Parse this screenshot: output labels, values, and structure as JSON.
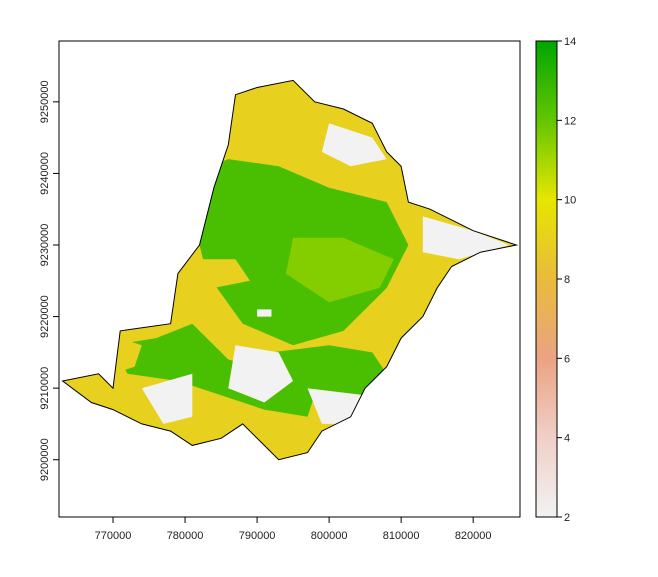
{
  "map": {
    "x_ticks": [
      "770000",
      "780000",
      "790000",
      "800000",
      "810000",
      "820000"
    ],
    "x_tick_values": [
      770000,
      780000,
      790000,
      800000,
      810000,
      820000
    ],
    "y_ticks": [
      "9200000",
      "9210000",
      "9220000",
      "9230000",
      "9240000",
      "9250000"
    ],
    "y_tick_values": [
      9200000,
      9210000,
      9220000,
      9230000,
      9240000,
      9250000
    ],
    "x_range": [
      762500,
      826500
    ],
    "y_range": [
      9192000,
      9258500
    ],
    "legend": {
      "ticks": [
        "2",
        "4",
        "6",
        "8",
        "10",
        "12",
        "14"
      ],
      "tick_values": [
        2,
        4,
        6,
        8,
        10,
        12,
        14
      ],
      "range": [
        2,
        14
      ],
      "colors": [
        "#f2f2f2",
        "#f0cfc8",
        "#eba382",
        "#e9bb3b",
        "#e6e600",
        "#63c600",
        "#00a600"
      ]
    },
    "boundary": [
      [
        763,
        9211
      ],
      [
        768,
        9212
      ],
      [
        770,
        9210
      ],
      [
        771,
        9218
      ],
      [
        778,
        9219
      ],
      [
        779,
        9226
      ],
      [
        782,
        9230
      ],
      [
        784,
        9238
      ],
      [
        786,
        9244
      ],
      [
        787,
        9251
      ],
      [
        790,
        9252
      ],
      [
        795,
        9253
      ],
      [
        798,
        9250
      ],
      [
        802,
        9249
      ],
      [
        806,
        9247
      ],
      [
        808,
        9243
      ],
      [
        810,
        9241
      ],
      [
        811,
        9236
      ],
      [
        814,
        9235
      ],
      [
        820,
        9232
      ],
      [
        826,
        9230
      ],
      [
        821,
        9229
      ],
      [
        817,
        9227
      ],
      [
        815,
        9224
      ],
      [
        813,
        9220
      ],
      [
        810,
        9217
      ],
      [
        808,
        9213
      ],
      [
        805,
        9210
      ],
      [
        803,
        9206
      ],
      [
        799,
        9204
      ],
      [
        797,
        9201
      ],
      [
        793,
        9200
      ],
      [
        791,
        9202
      ],
      [
        788,
        9205
      ],
      [
        785,
        9203
      ],
      [
        781,
        9202
      ],
      [
        778,
        9204
      ],
      [
        774,
        9205
      ],
      [
        770,
        9207
      ],
      [
        767,
        9208
      ],
      [
        763,
        9211
      ]
    ],
    "regions": [
      {
        "value": 12.5,
        "points": [
          [
            781,
            9240
          ],
          [
            786,
            9242
          ],
          [
            793,
            9241
          ],
          [
            800,
            9238
          ],
          [
            808,
            9236
          ],
          [
            811,
            9230
          ],
          [
            808,
            9224
          ],
          [
            802,
            9218
          ],
          [
            795,
            9216
          ],
          [
            788,
            9219
          ],
          [
            783,
            9226
          ],
          [
            781,
            9234
          ]
        ]
      },
      {
        "value": 11.5,
        "points": [
          [
            795,
            9231
          ],
          [
            802,
            9231
          ],
          [
            809,
            9228
          ],
          [
            807,
            9224
          ],
          [
            800,
            9222
          ],
          [
            794,
            9226
          ]
        ]
      },
      {
        "value": 12.5,
        "points": [
          [
            770,
            9216
          ],
          [
            776,
            9217
          ],
          [
            781,
            9219
          ],
          [
            786,
            9214
          ],
          [
            793,
            9212
          ],
          [
            798,
            9209
          ],
          [
            797,
            9206
          ],
          [
            791,
            9207
          ],
          [
            785,
            9209
          ],
          [
            779,
            9211
          ],
          [
            772,
            9212
          ]
        ]
      },
      {
        "value": 12.5,
        "points": [
          [
            792,
            9215
          ],
          [
            800,
            9216
          ],
          [
            806,
            9215
          ],
          [
            808,
            9212
          ],
          [
            805,
            9209
          ],
          [
            798,
            9208
          ],
          [
            793,
            9210
          ]
        ]
      },
      {
        "value": 9,
        "points": [
          [
            787,
            9249
          ],
          [
            791,
            9251
          ],
          [
            796,
            9251
          ],
          [
            799,
            9248
          ],
          [
            794,
            9246
          ],
          [
            789,
            9245
          ]
        ]
      },
      {
        "value": 9,
        "points": [
          [
            771,
            9217
          ],
          [
            774,
            9216
          ],
          [
            773,
            9213
          ],
          [
            770,
            9212
          ]
        ]
      },
      {
        "value": 9,
        "points": [
          [
            779,
            9205
          ],
          [
            786,
            9206
          ],
          [
            789,
            9204
          ],
          [
            785,
            9202
          ],
          [
            780,
            9203
          ]
        ]
      },
      {
        "value": 9,
        "points": [
          [
            782,
            9228
          ],
          [
            787,
            9228
          ],
          [
            789,
            9225
          ],
          [
            784,
            9224
          ]
        ]
      },
      {
        "value": 2,
        "points": [
          [
            787,
            9216
          ],
          [
            793,
            9215
          ],
          [
            795,
            9211
          ],
          [
            791,
            9208
          ],
          [
            786,
            9210
          ]
        ]
      },
      {
        "value": 2,
        "points": [
          [
            774,
            9210
          ],
          [
            781,
            9212
          ],
          [
            781,
            9206
          ],
          [
            777,
            9205
          ]
        ]
      },
      {
        "value": 2,
        "points": [
          [
            800,
            9247
          ],
          [
            806,
            9245
          ],
          [
            808,
            9242
          ],
          [
            803,
            9241
          ],
          [
            799,
            9243
          ]
        ]
      },
      {
        "value": 2,
        "points": [
          [
            797,
            9210
          ],
          [
            805,
            9209
          ],
          [
            805,
            9205
          ],
          [
            799,
            9205
          ]
        ]
      },
      {
        "value": 2,
        "points": [
          [
            813,
            9234
          ],
          [
            820,
            9232
          ],
          [
            825,
            9230
          ],
          [
            818,
            9228
          ],
          [
            813,
            9229
          ]
        ]
      },
      {
        "value": 2,
        "points": [
          [
            790,
            9221
          ],
          [
            792,
            9221
          ],
          [
            792,
            9220
          ],
          [
            790,
            9220
          ]
        ]
      }
    ]
  }
}
